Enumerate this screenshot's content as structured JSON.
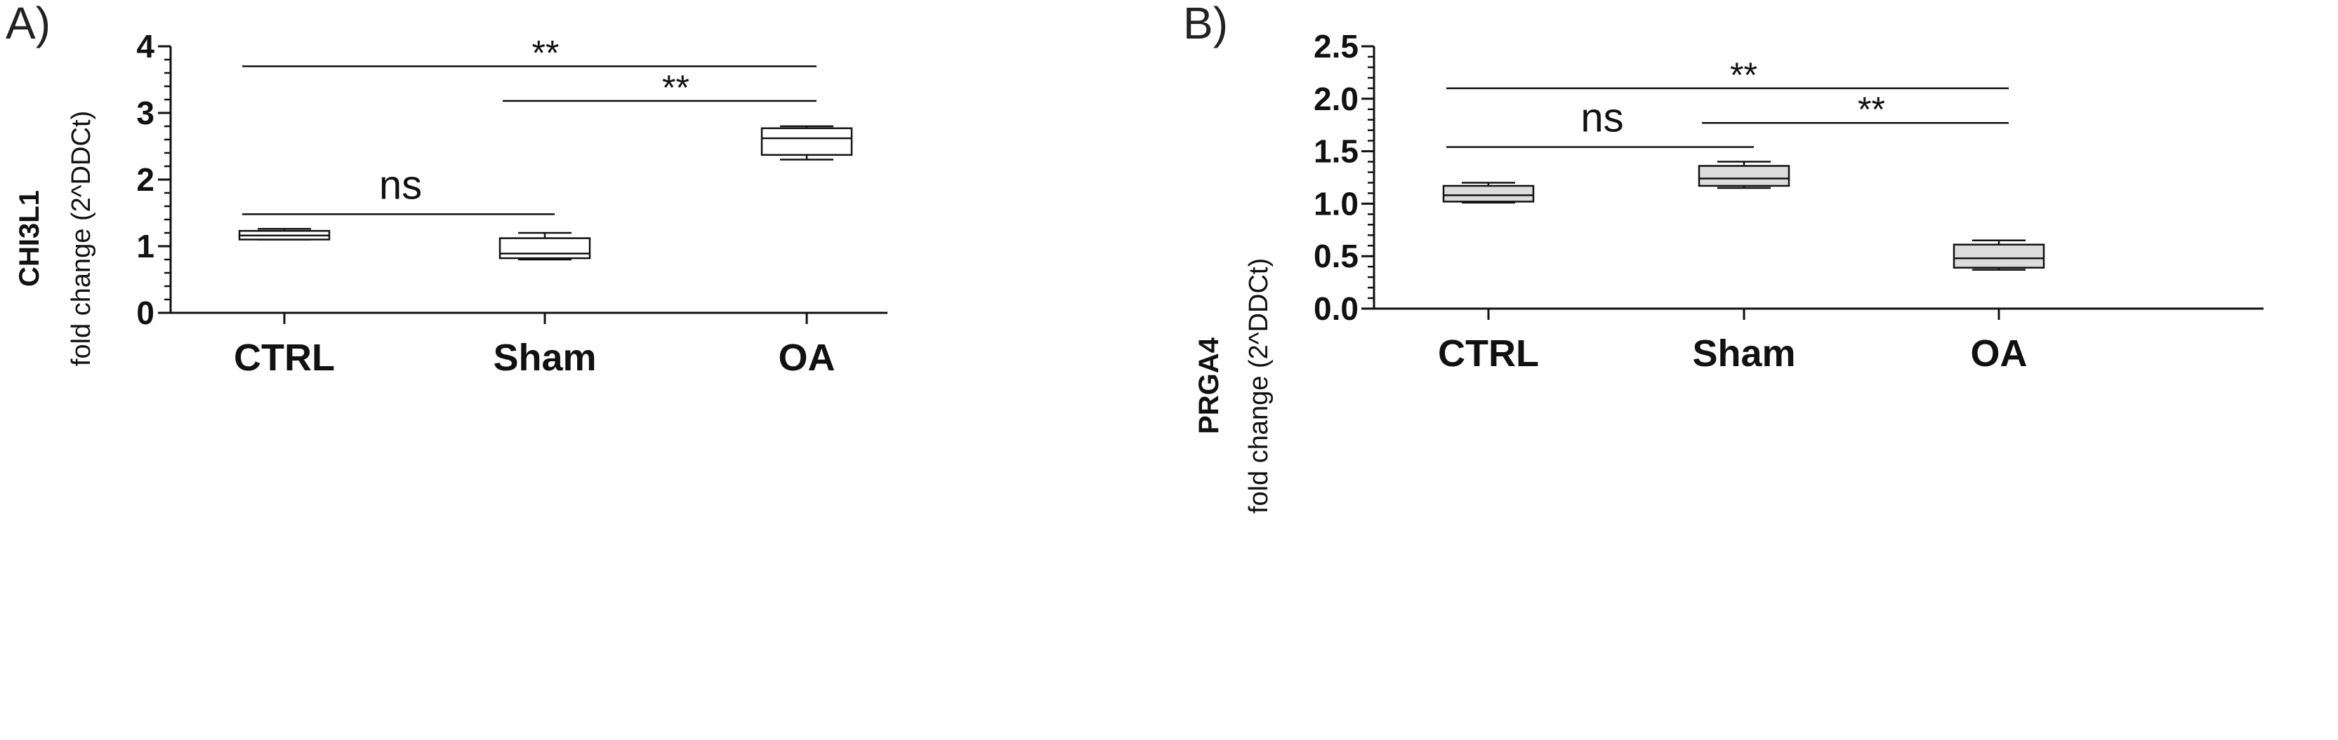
{
  "chart_data": [
    {
      "type": "box",
      "panel_label": "A)",
      "ylabel_main": "CHI3L1",
      "ylabel_sub": "fold change (2^DDCt)",
      "categories": [
        "CTRL",
        "Sham",
        "OA"
      ],
      "yticks": [
        "0",
        "1",
        "2",
        "3",
        "4"
      ],
      "ylim": [
        0,
        4
      ],
      "minor_ticks_per_major": 5,
      "box_fill": "#ffffff",
      "boxes": [
        {
          "min": 1.1,
          "q1": 1.1,
          "median": 1.16,
          "q3": 1.23,
          "max": 1.26
        },
        {
          "min": 0.8,
          "q1": 0.82,
          "median": 0.89,
          "q3": 1.12,
          "max": 1.2
        },
        {
          "min": 2.3,
          "q1": 2.37,
          "median": 2.62,
          "q3": 2.77,
          "max": 2.8
        }
      ],
      "comparisons": [
        {
          "from": 0,
          "to": 2,
          "y": 3.7,
          "label": "**"
        },
        {
          "from": 1,
          "to": 2,
          "y": 3.18,
          "label": "**"
        },
        {
          "from": 0,
          "to": 1,
          "y": 1.48,
          "label": "ns"
        }
      ]
    },
    {
      "type": "box",
      "panel_label": "B)",
      "ylabel_main": "PRGA4",
      "ylabel_sub": "fold change (2^DDCt)",
      "categories": [
        "CTRL",
        "Sham",
        "OA"
      ],
      "yticks": [
        "0.0",
        "0.5",
        "1.0",
        "1.5",
        "2.0",
        "2.5"
      ],
      "ylim": [
        0,
        2.5
      ],
      "minor_ticks_per_major": 5,
      "box_fill": "#dcdcdc",
      "boxes": [
        {
          "min": 1.01,
          "q1": 1.02,
          "median": 1.08,
          "q3": 1.17,
          "max": 1.2
        },
        {
          "min": 1.15,
          "q1": 1.17,
          "median": 1.24,
          "q3": 1.36,
          "max": 1.4
        },
        {
          "min": 0.37,
          "q1": 0.39,
          "median": 0.48,
          "q3": 0.61,
          "max": 0.65
        }
      ],
      "comparisons": [
        {
          "from": 0,
          "to": 2,
          "y": 2.1,
          "label": "**"
        },
        {
          "from": 1,
          "to": 2,
          "y": 1.77,
          "label": "**"
        },
        {
          "from": 0,
          "to": 1,
          "y": 1.54,
          "label": "ns"
        }
      ]
    }
  ]
}
